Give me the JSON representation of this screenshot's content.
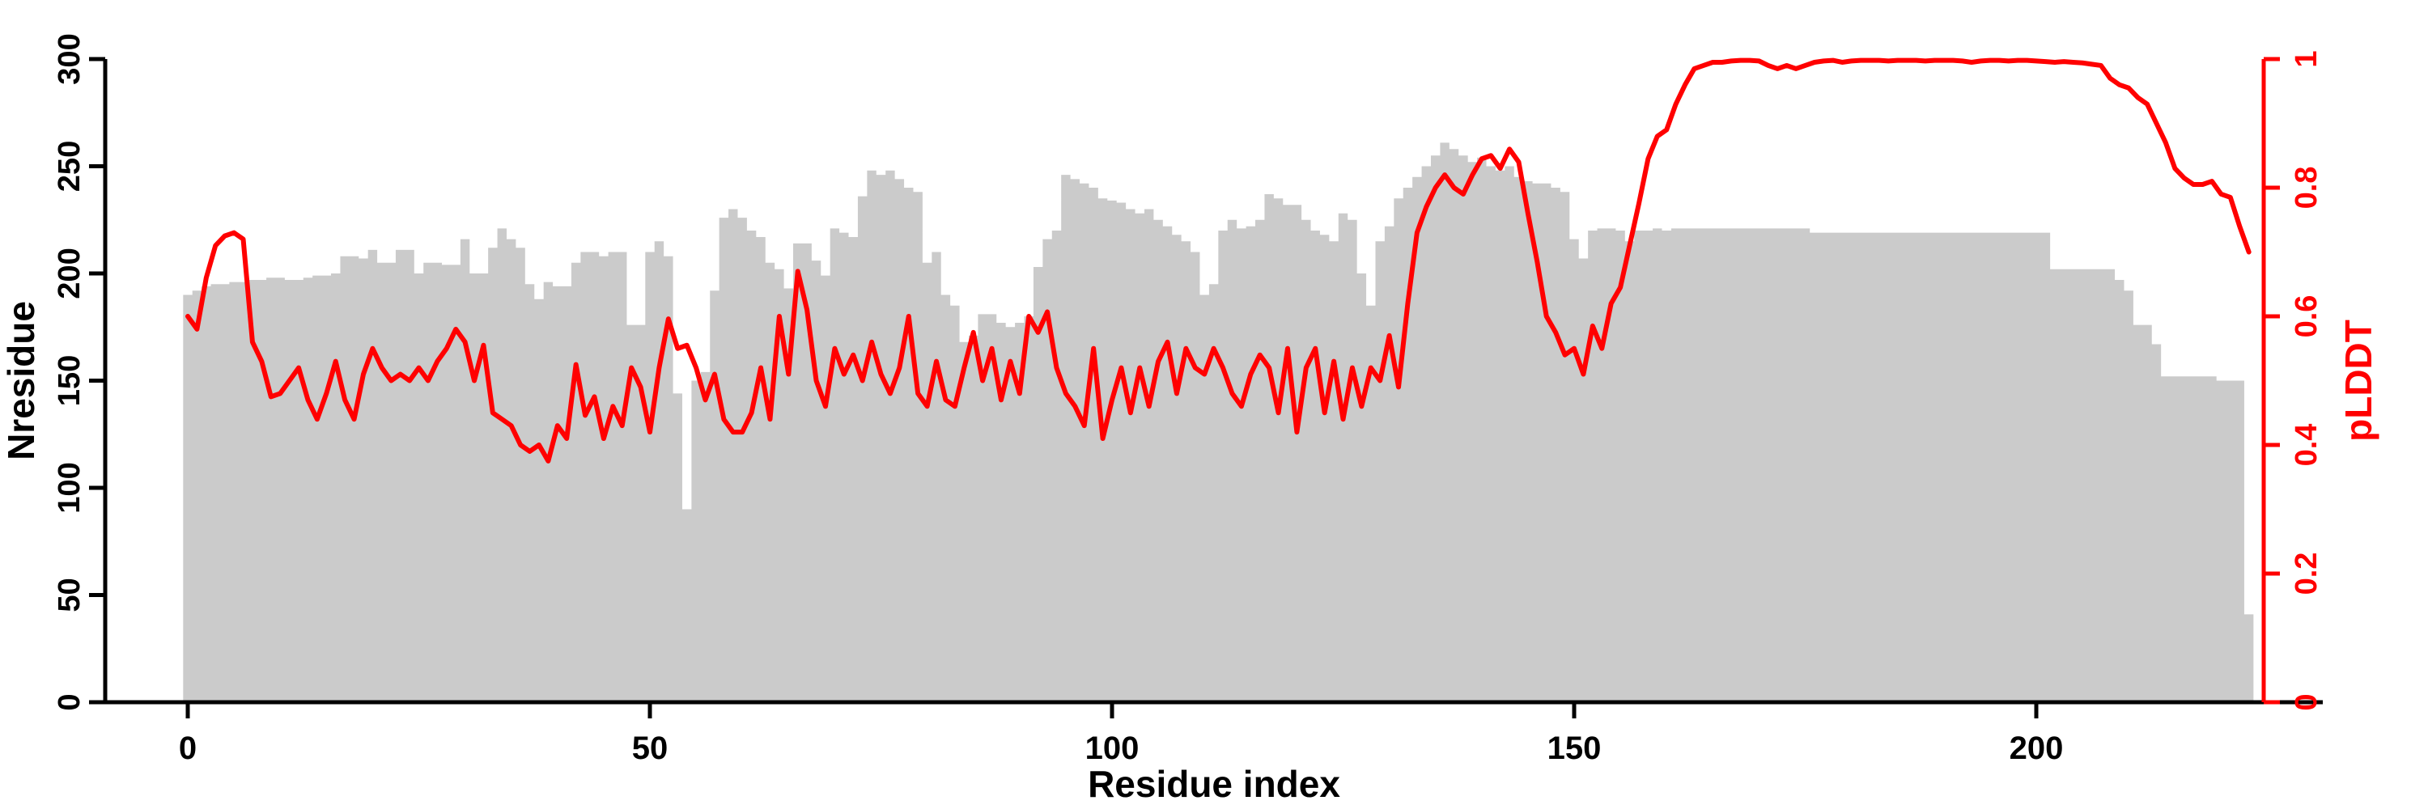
{
  "chart_data": {
    "type": "bar+line",
    "title": "",
    "xlabel": "Residue index",
    "ylabel_left": "Nresidue",
    "ylabel_right": "pLDDT",
    "x_ticks": [
      0,
      50,
      100,
      150,
      200
    ],
    "y_left_ticks": [
      0,
      50,
      100,
      150,
      200,
      250,
      300
    ],
    "y_right_ticks": [
      0,
      0.2,
      0.4,
      0.6,
      0.8,
      1
    ],
    "x_range": [
      0,
      224
    ],
    "y_left_range": [
      0,
      300
    ],
    "y_right_range": [
      0,
      1
    ],
    "grid": "off",
    "legend": "none",
    "bar_color": "#CBCBCB",
    "line_color": "#FF0000",
    "axis_color": "#000000",
    "right_axis_color": "#FF0000",
    "series": [
      {
        "name": "Nresidue",
        "type": "bar",
        "axis": "left",
        "values": [
          190,
          192,
          194,
          195,
          195,
          196,
          196,
          197,
          197,
          198,
          198,
          197,
          197,
          198,
          199,
          199,
          200,
          208,
          208,
          207,
          211,
          205,
          205,
          211,
          211,
          200,
          205,
          205,
          204,
          204,
          216,
          200,
          200,
          212,
          221,
          216,
          212,
          195,
          188,
          196,
          194,
          194,
          205,
          210,
          210,
          208,
          210,
          210,
          176,
          176,
          210,
          215,
          208,
          144,
          90,
          150,
          154,
          192,
          226,
          230,
          226,
          220,
          217,
          205,
          202,
          193,
          214,
          214,
          206,
          199,
          221,
          219,
          217,
          236,
          248,
          246,
          248,
          244,
          240,
          238,
          205,
          210,
          190,
          185,
          168,
          171,
          181,
          181,
          177,
          175,
          177,
          180,
          203,
          216,
          220,
          246,
          244,
          242,
          240,
          235,
          234,
          233,
          230,
          228,
          230,
          225,
          222,
          218,
          215,
          210,
          190,
          195,
          220,
          225,
          221,
          222,
          225,
          237,
          235,
          232,
          232,
          225,
          220,
          218,
          215,
          228,
          225,
          200,
          185,
          215,
          222,
          235,
          240,
          245,
          250,
          255,
          261,
          258,
          255,
          252,
          254,
          250,
          248,
          250,
          245,
          243,
          242,
          242,
          240,
          238,
          216,
          207,
          220,
          221,
          221,
          220,
          215,
          220,
          220,
          221,
          220,
          221,
          221,
          221,
          221,
          221,
          221,
          221,
          221,
          221,
          221,
          221,
          221,
          221,
          221,
          221,
          219,
          219,
          219,
          219,
          219,
          219,
          219,
          219,
          219,
          219,
          219,
          219,
          219,
          219,
          219,
          219,
          219,
          219,
          219,
          219,
          219,
          219,
          219,
          219,
          219,
          219,
          202,
          202,
          202,
          202,
          202,
          202,
          202,
          197,
          192,
          176,
          176,
          167,
          152,
          152,
          152,
          152,
          152,
          152,
          150,
          150,
          150,
          41
        ]
      },
      {
        "name": "pLDDT",
        "type": "line",
        "axis": "right",
        "values": [
          0.6,
          0.58,
          0.66,
          0.71,
          0.725,
          0.73,
          0.72,
          0.56,
          0.53,
          0.475,
          0.48,
          0.5,
          0.52,
          0.47,
          0.44,
          0.48,
          0.53,
          0.47,
          0.44,
          0.51,
          0.55,
          0.52,
          0.5,
          0.51,
          0.5,
          0.52,
          0.5,
          0.53,
          0.55,
          0.58,
          0.56,
          0.5,
          0.555,
          0.45,
          0.44,
          0.43,
          0.4,
          0.39,
          0.4,
          0.375,
          0.43,
          0.41,
          0.525,
          0.446,
          0.475,
          0.41,
          0.46,
          0.43,
          0.52,
          0.49,
          0.42,
          0.52,
          0.596,
          0.55,
          0.555,
          0.52,
          0.47,
          0.51,
          0.44,
          0.42,
          0.42,
          0.45,
          0.52,
          0.44,
          0.6,
          0.51,
          0.67,
          0.61,
          0.5,
          0.46,
          0.55,
          0.51,
          0.54,
          0.5,
          0.56,
          0.51,
          0.48,
          0.52,
          0.6,
          0.48,
          0.46,
          0.53,
          0.47,
          0.46,
          0.52,
          0.575,
          0.5,
          0.55,
          0.47,
          0.53,
          0.48,
          0.6,
          0.575,
          0.607,
          0.52,
          0.48,
          0.46,
          0.43,
          0.55,
          0.41,
          0.47,
          0.52,
          0.45,
          0.52,
          0.46,
          0.53,
          0.56,
          0.48,
          0.55,
          0.52,
          0.51,
          0.55,
          0.52,
          0.48,
          0.46,
          0.51,
          0.54,
          0.52,
          0.45,
          0.55,
          0.42,
          0.52,
          0.55,
          0.45,
          0.53,
          0.44,
          0.52,
          0.46,
          0.52,
          0.5,
          0.57,
          0.49,
          0.62,
          0.73,
          0.77,
          0.8,
          0.82,
          0.8,
          0.79,
          0.82,
          0.845,
          0.85,
          0.83,
          0.86,
          0.84,
          0.76,
          0.685,
          0.6,
          0.575,
          0.54,
          0.55,
          0.51,
          0.585,
          0.55,
          0.62,
          0.645,
          0.71,
          0.775,
          0.845,
          0.88,
          0.89,
          0.93,
          0.96,
          0.985,
          0.99,
          0.995,
          0.995,
          0.997,
          0.998,
          0.998,
          0.997,
          0.99,
          0.985,
          0.99,
          0.985,
          0.99,
          0.995,
          0.997,
          0.998,
          0.995,
          0.997,
          0.998,
          0.998,
          0.998,
          0.997,
          0.998,
          0.998,
          0.998,
          0.997,
          0.998,
          0.998,
          0.998,
          0.997,
          0.995,
          0.997,
          0.998,
          0.998,
          0.997,
          0.998,
          0.998,
          0.997,
          0.996,
          0.995,
          0.996,
          0.995,
          0.994,
          0.992,
          0.99,
          0.97,
          0.96,
          0.955,
          0.94,
          0.93,
          0.9,
          0.87,
          0.83,
          0.815,
          0.805,
          0.805,
          0.81,
          0.79,
          0.785,
          0.74,
          0.7
        ]
      }
    ]
  }
}
